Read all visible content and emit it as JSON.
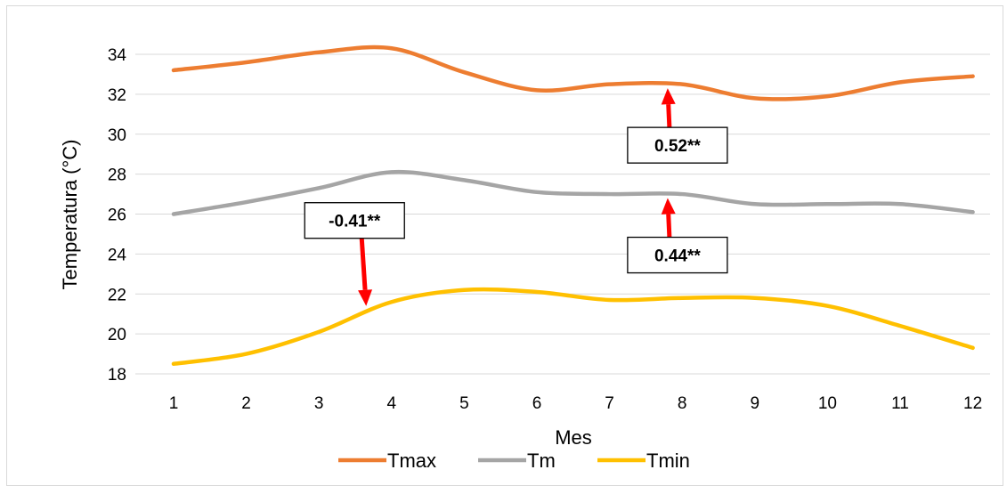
{
  "chart_data": {
    "type": "line",
    "title": "",
    "xlabel": "Mes",
    "ylabel": "Temperatura (°C)",
    "categories": [
      "1",
      "2",
      "3",
      "4",
      "5",
      "6",
      "7",
      "8",
      "9",
      "10",
      "11",
      "12"
    ],
    "ylim": [
      18,
      34
    ],
    "yticks": [
      "18",
      "20",
      "22",
      "24",
      "26",
      "28",
      "30",
      "32",
      "34"
    ],
    "grid": true,
    "legend": "bottom",
    "series": [
      {
        "name": "Tmax",
        "color": "#ed7d31",
        "values": [
          33.2,
          33.6,
          34.1,
          34.3,
          33.1,
          32.2,
          32.5,
          32.5,
          31.8,
          31.9,
          32.6,
          32.9
        ]
      },
      {
        "name": "Tm",
        "color": "#a5a5a5",
        "values": [
          26.0,
          26.6,
          27.3,
          28.1,
          27.7,
          27.1,
          27.0,
          27.0,
          26.5,
          26.5,
          26.5,
          26.1
        ]
      },
      {
        "name": "Tmin",
        "color": "#ffc000",
        "values": [
          18.5,
          19.0,
          20.1,
          21.6,
          22.2,
          22.1,
          21.7,
          21.8,
          21.8,
          21.4,
          20.4,
          19.3
        ]
      }
    ],
    "annotations": [
      {
        "text": "-0.41**",
        "x": 3.65,
        "y": 21.4,
        "arrow": "down"
      },
      {
        "text": "0.44**",
        "x": 7.8,
        "y": 26.8,
        "arrow": "up"
      },
      {
        "text": "0.52**",
        "x": 7.8,
        "y": 32.3,
        "arrow": "up"
      }
    ],
    "arrow_color": "#ff0000"
  }
}
